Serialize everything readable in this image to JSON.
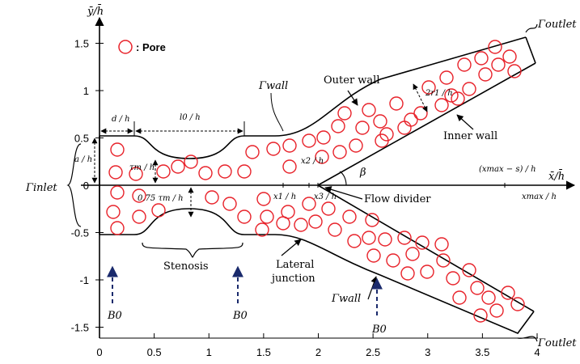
{
  "axes": {
    "y_label": "ȳ/h̄",
    "x_label": "x̄/h̄",
    "x_ticks": [
      "0",
      "0.5",
      "1",
      "1.5",
      "2",
      "2.5",
      "3",
      "3.5",
      "4"
    ],
    "y_ticks": [
      "1.5",
      "1",
      "0.5",
      "0",
      "-0.5",
      "-1",
      "-1.5"
    ]
  },
  "legend": {
    "pore_label": ": Pore",
    "pore_color": "#e8222a"
  },
  "labels": {
    "gamma_inlet": "Γinlet",
    "gamma_outlet_top": "Γoutlet",
    "gamma_outlet_bottom": "Γoutlet",
    "gamma_wall_top": "Γwall",
    "gamma_wall_bottom": "Γwall",
    "outer_wall": "Outer wall",
    "inner_wall": "Inner wall",
    "flow_divider": "Flow divider",
    "stenosis": "Stenosis",
    "lateral_junction_1": "Lateral",
    "lateral_junction_2": "junction",
    "beta": "β",
    "b0_1": "B0",
    "b0_2": "B0",
    "b0_3": "B0",
    "dim_d": "d / h",
    "dim_l0": "l0 / h",
    "dim_a": "a / h",
    "dim_tau_upper": "τm / h",
    "dim_tau_lower": "0.75 τm / h",
    "dim_2r1": "2r1 / h",
    "dim_x1": "x1 / h",
    "dim_x2": "x2 / h",
    "dim_x3": "x3 / h",
    "dim_xmax_s": "(xmax − s) / h",
    "dim_xmax": "xmax / h"
  },
  "colors": {
    "line": "#000000",
    "pore": "#e8222a",
    "field_arrow": "#1a2a6c"
  }
}
